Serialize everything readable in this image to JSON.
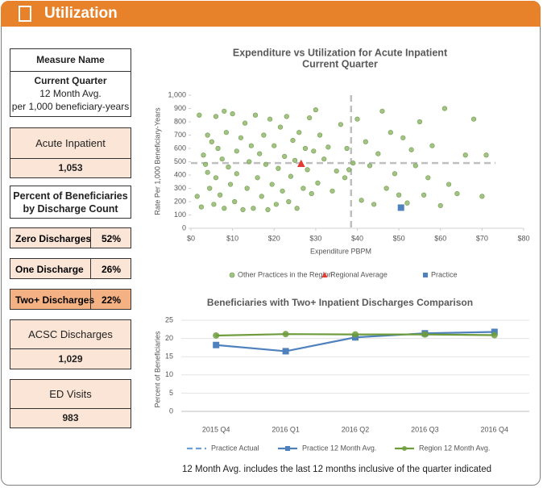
{
  "header": {
    "title": "Utilization"
  },
  "panel": {
    "measure": {
      "title": "Measure Name",
      "lines": [
        "Current Quarter",
        "12 Month Avg.",
        "per 1,000 beneficiary-years"
      ]
    },
    "acute": {
      "label": "Acute Inpatient",
      "value": "1,053"
    },
    "discharge_title": [
      "Percent of Beneficiaries",
      "by Discharge Count"
    ],
    "discharges": [
      {
        "label": "Zero Discharges",
        "value": "52%"
      },
      {
        "label": "One Discharge",
        "value": "26%"
      },
      {
        "label": "Two+ Discharges",
        "value": "22%"
      }
    ],
    "acsc": {
      "label": "ACSC Discharges",
      "value": "1,029"
    },
    "ed": {
      "label": "ED Visits",
      "value": "983"
    }
  },
  "chart_data": [
    {
      "type": "scatter",
      "title": [
        "Expenditure vs Utilization for Acute Inpatient",
        "Current Quarter"
      ],
      "x_label": "Expenditure PBPM",
      "y_label": "Rate Per 1,000 Beneficiary-Years",
      "xlim": [
        0,
        80
      ],
      "ylim": [
        0,
        1000
      ],
      "xticks": [
        {
          "value": 0,
          "label": "$0"
        },
        {
          "value": 10,
          "label": "$10"
        },
        {
          "value": 20,
          "label": "$20"
        },
        {
          "value": 30,
          "label": "$30"
        },
        {
          "value": 40,
          "label": "$40"
        },
        {
          "value": 50,
          "label": "$50"
        },
        {
          "value": 60,
          "label": "$60"
        },
        {
          "value": 70,
          "label": "$70"
        },
        {
          "value": 80,
          "label": "$80"
        }
      ],
      "yticks": [
        0,
        100,
        200,
        300,
        400,
        500,
        600,
        700,
        800,
        900,
        {
          "value": 1000,
          "label": "1,000"
        }
      ],
      "ref_lines": {
        "x": 38.5,
        "y": 490
      },
      "series": [
        {
          "name": "Other Practices in the Region",
          "color": "#93b86e",
          "marker": "circle",
          "x": [
            1.5,
            2,
            2.5,
            3,
            3.5,
            4,
            4,
            4.5,
            5,
            5.5,
            6,
            6,
            6.5,
            7,
            7.5,
            8,
            8,
            8.5,
            9,
            9.5,
            10,
            10.5,
            11,
            11,
            12,
            12.5,
            13,
            13.5,
            14,
            14.5,
            15,
            15.5,
            16,
            16.5,
            17,
            17.5,
            18,
            18.5,
            19,
            19.5,
            20,
            20.5,
            21,
            21.5,
            22,
            22.5,
            23,
            23.5,
            24,
            24.5,
            25,
            25.5,
            26,
            27,
            27.5,
            28,
            28.5,
            29,
            29.5,
            30,
            30.5,
            31,
            32,
            33,
            34,
            35,
            36,
            37,
            37.5,
            38,
            39,
            40,
            41,
            42,
            43,
            44,
            45,
            46,
            47,
            48,
            49,
            50,
            51,
            52,
            53,
            54,
            55,
            56,
            57,
            58,
            60,
            61,
            62,
            64,
            66,
            68,
            70,
            71
          ],
          "values": [
            240,
            850,
            160,
            550,
            480,
            700,
            420,
            300,
            650,
            180,
            840,
            380,
            600,
            250,
            520,
            880,
            150,
            720,
            460,
            330,
            860,
            200,
            580,
            410,
            680,
            140,
            790,
            300,
            500,
            620,
            150,
            850,
            380,
            560,
            240,
            700,
            480,
            140,
            820,
            330,
            620,
            180,
            450,
            760,
            280,
            540,
            840,
            200,
            390,
            660,
            510,
            150,
            720,
            300,
            600,
            440,
            830,
            260,
            580,
            890,
            340,
            700,
            520,
            610,
            280,
            430,
            780,
            380,
            600,
            440,
            490,
            820,
            210,
            650,
            470,
            180,
            560,
            880,
            300,
            720,
            410,
            250,
            680,
            190,
            590,
            470,
            800,
            250,
            380,
            620,
            170,
            900,
            330,
            260,
            550,
            820,
            240,
            550
          ]
        },
        {
          "name": "Regional Average",
          "color": "#e03c31",
          "marker": "triangle",
          "x": [
            26.5
          ],
          "values": [
            485
          ]
        },
        {
          "name": "Practice",
          "color": "#4f81bd",
          "marker": "square",
          "x": [
            50.5
          ],
          "values": [
            155
          ]
        }
      ]
    },
    {
      "type": "line",
      "title": "Beneficiaries with Two+ Inpatient Discharges Comparison",
      "y_label": "Percent of Beneficiaries",
      "categories": [
        "2015 Q4",
        "2016 Q1",
        "2016 Q2",
        "2016 Q3",
        "2016 Q4"
      ],
      "ylim": [
        0,
        25
      ],
      "yticks": [
        0,
        5,
        10,
        15,
        20,
        25
      ],
      "grid": true,
      "series": [
        {
          "name": "Practice Actual",
          "color": "#6fa0d4",
          "dash": true,
          "marker": "none",
          "values": [
            null,
            null,
            null,
            null,
            null
          ]
        },
        {
          "name": "Practice 12 Month Avg.",
          "color": "#4f81bd",
          "marker": "square",
          "values": [
            18.2,
            16.5,
            20.3,
            21.4,
            21.8
          ]
        },
        {
          "name": "Region 12 Month Avg.",
          "color": "#6e9c3c",
          "marker": "circle",
          "values": [
            20.8,
            21.2,
            21.1,
            21.1,
            20.9
          ]
        }
      ]
    }
  ],
  "footnote": "12 Month Avg. includes the last 12 months inclusive of the quarter indicated"
}
